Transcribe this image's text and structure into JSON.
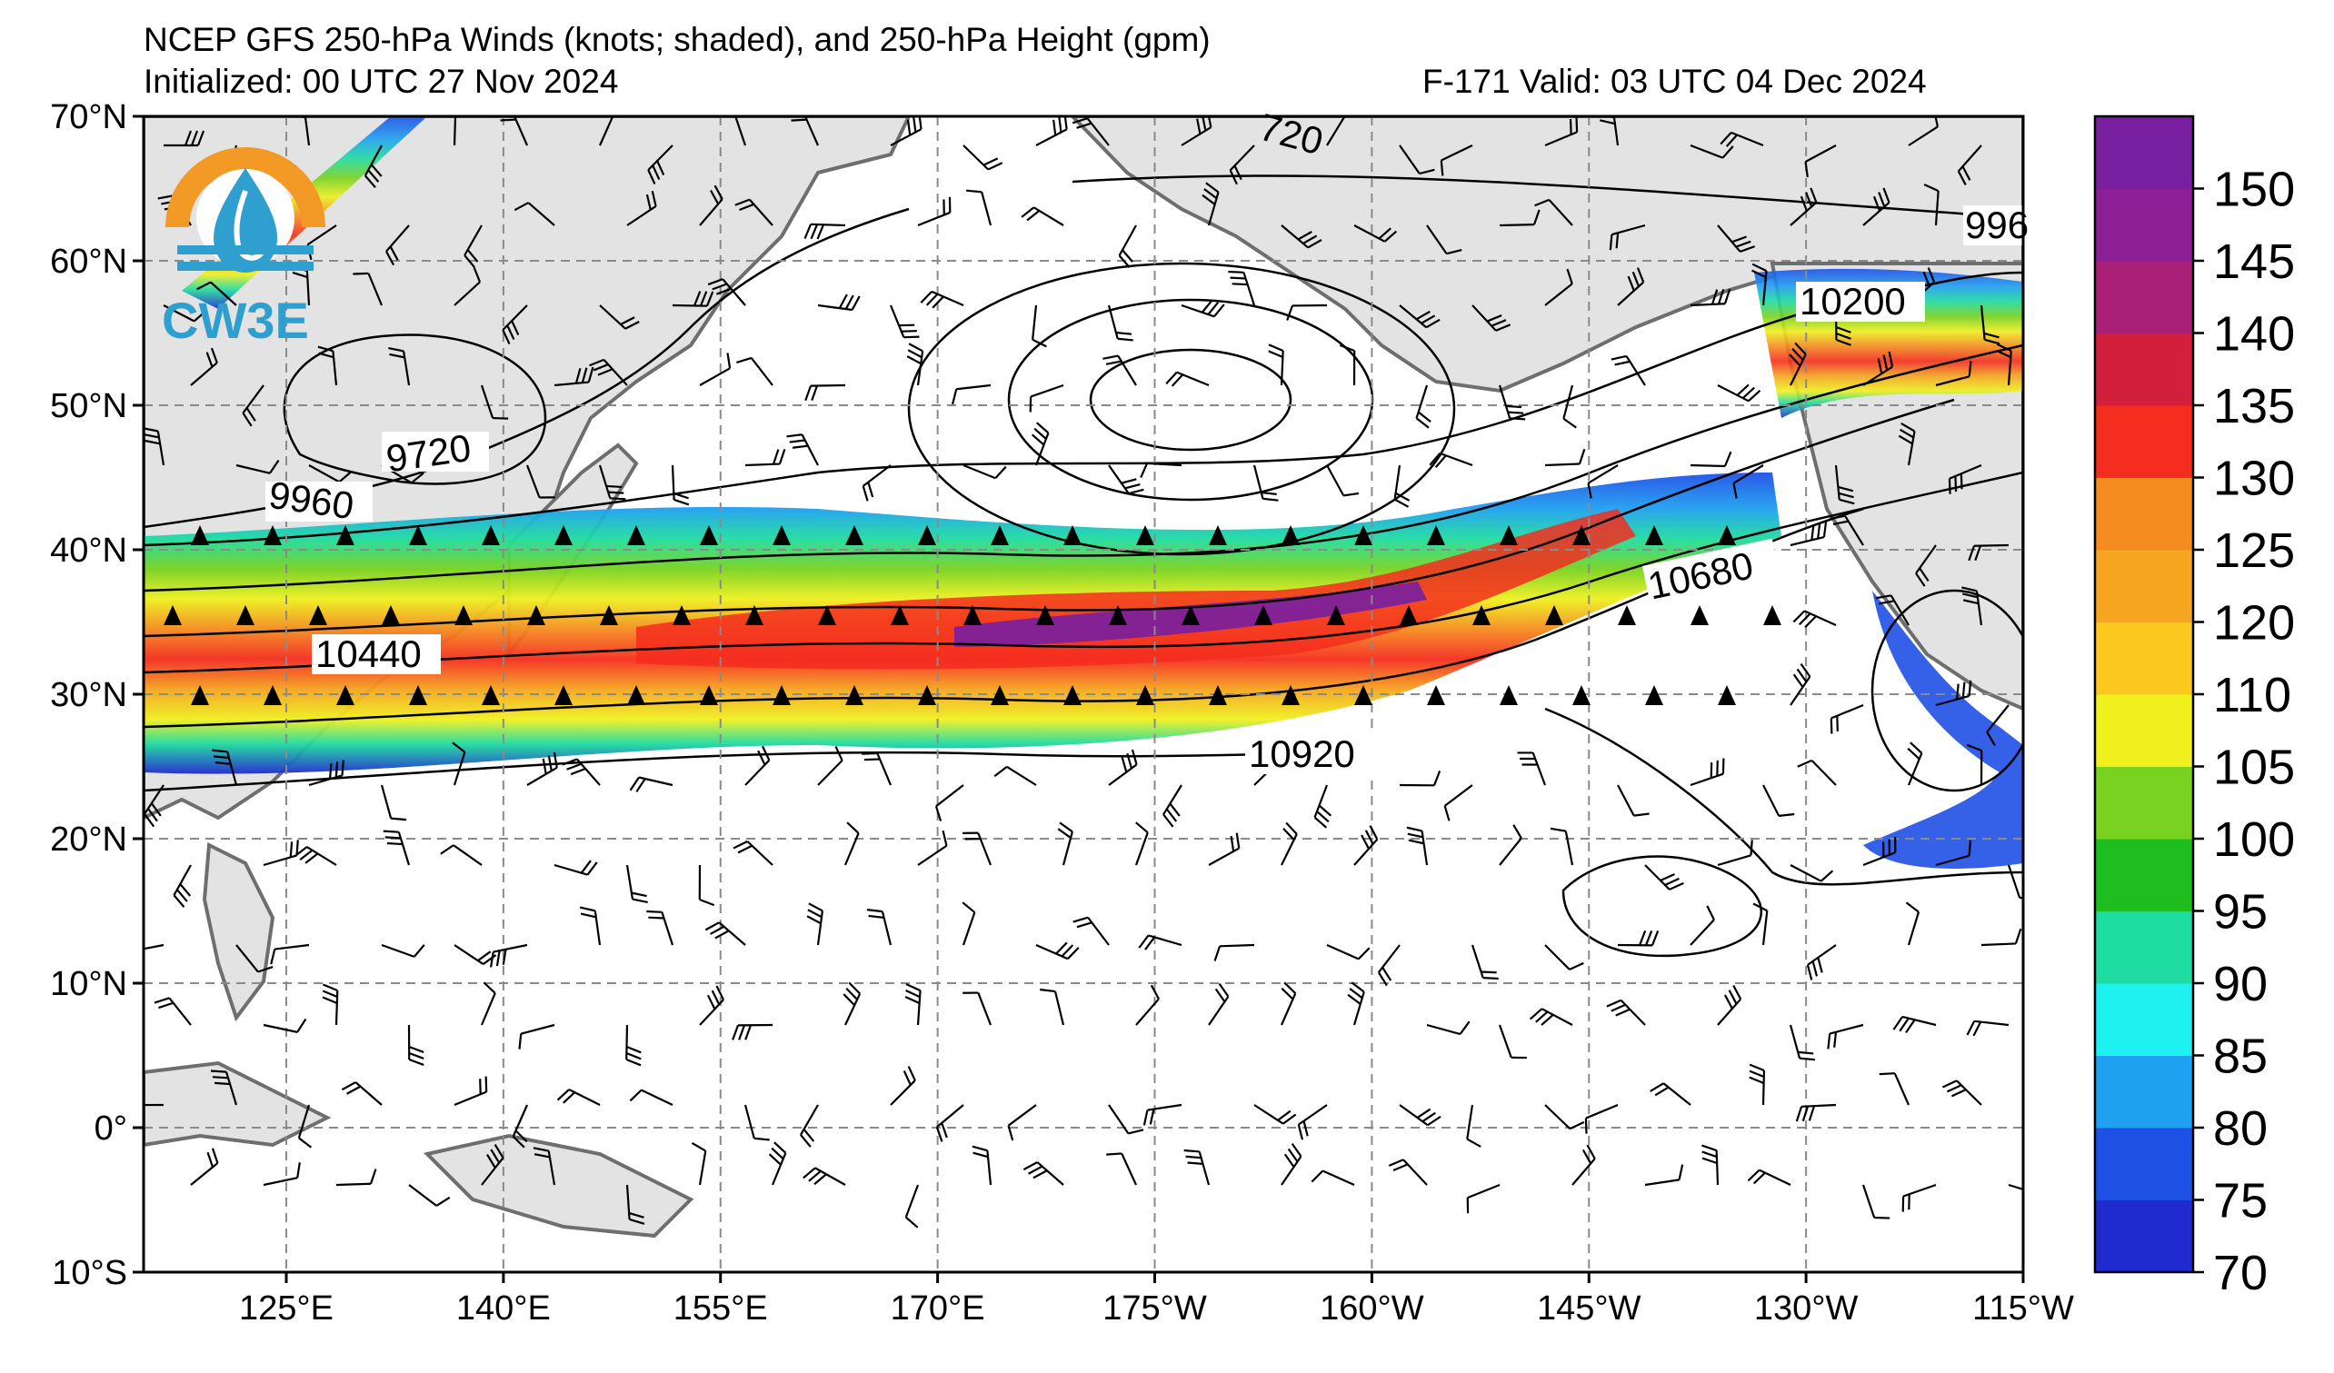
{
  "header": {
    "title": "NCEP GFS 250-hPa Winds (knots; shaded), and 250-hPa Height (gpm)",
    "initialized": "Initialized: 00 UTC 27 Nov 2024",
    "valid": "F-171  Valid: 03 UTC 04 Dec 2024"
  },
  "logo": {
    "text": "CW3E",
    "icon": "water-drop-sun-icon"
  },
  "map": {
    "lon_labels": [
      "125°E",
      "140°E",
      "155°E",
      "170°E",
      "175°W",
      "160°W",
      "145°W",
      "130°W",
      "115°W"
    ],
    "lat_labels": [
      "70°N",
      "60°N",
      "50°N",
      "40°N",
      "30°N",
      "20°N",
      "10°N",
      "0°",
      "10°S"
    ],
    "gridlines": "dashed",
    "land_color": "#e3e3e3",
    "coast_color": "#6e6e6e"
  },
  "contour_labels": [
    "9720",
    "9960",
    "10440",
    "10920",
    "10680",
    "10200",
    "996",
    "720"
  ],
  "colorbar": {
    "labels": [
      "70",
      "75",
      "80",
      "85",
      "90",
      "95",
      "100",
      "105",
      "110",
      "120",
      "125",
      "130",
      "135",
      "140",
      "145",
      "150"
    ],
    "colors": [
      "#1f2bce",
      "#1f50e6",
      "#1fa0f0",
      "#1ff0f0",
      "#1fdca0",
      "#1fbe1f",
      "#78d21f",
      "#f0f01f",
      "#fac81f",
      "#f5a51f",
      "#f58c1f",
      "#f52d1f",
      "#d21f3c",
      "#aa1f78",
      "#8c1f96",
      "#781fa0"
    ]
  }
}
